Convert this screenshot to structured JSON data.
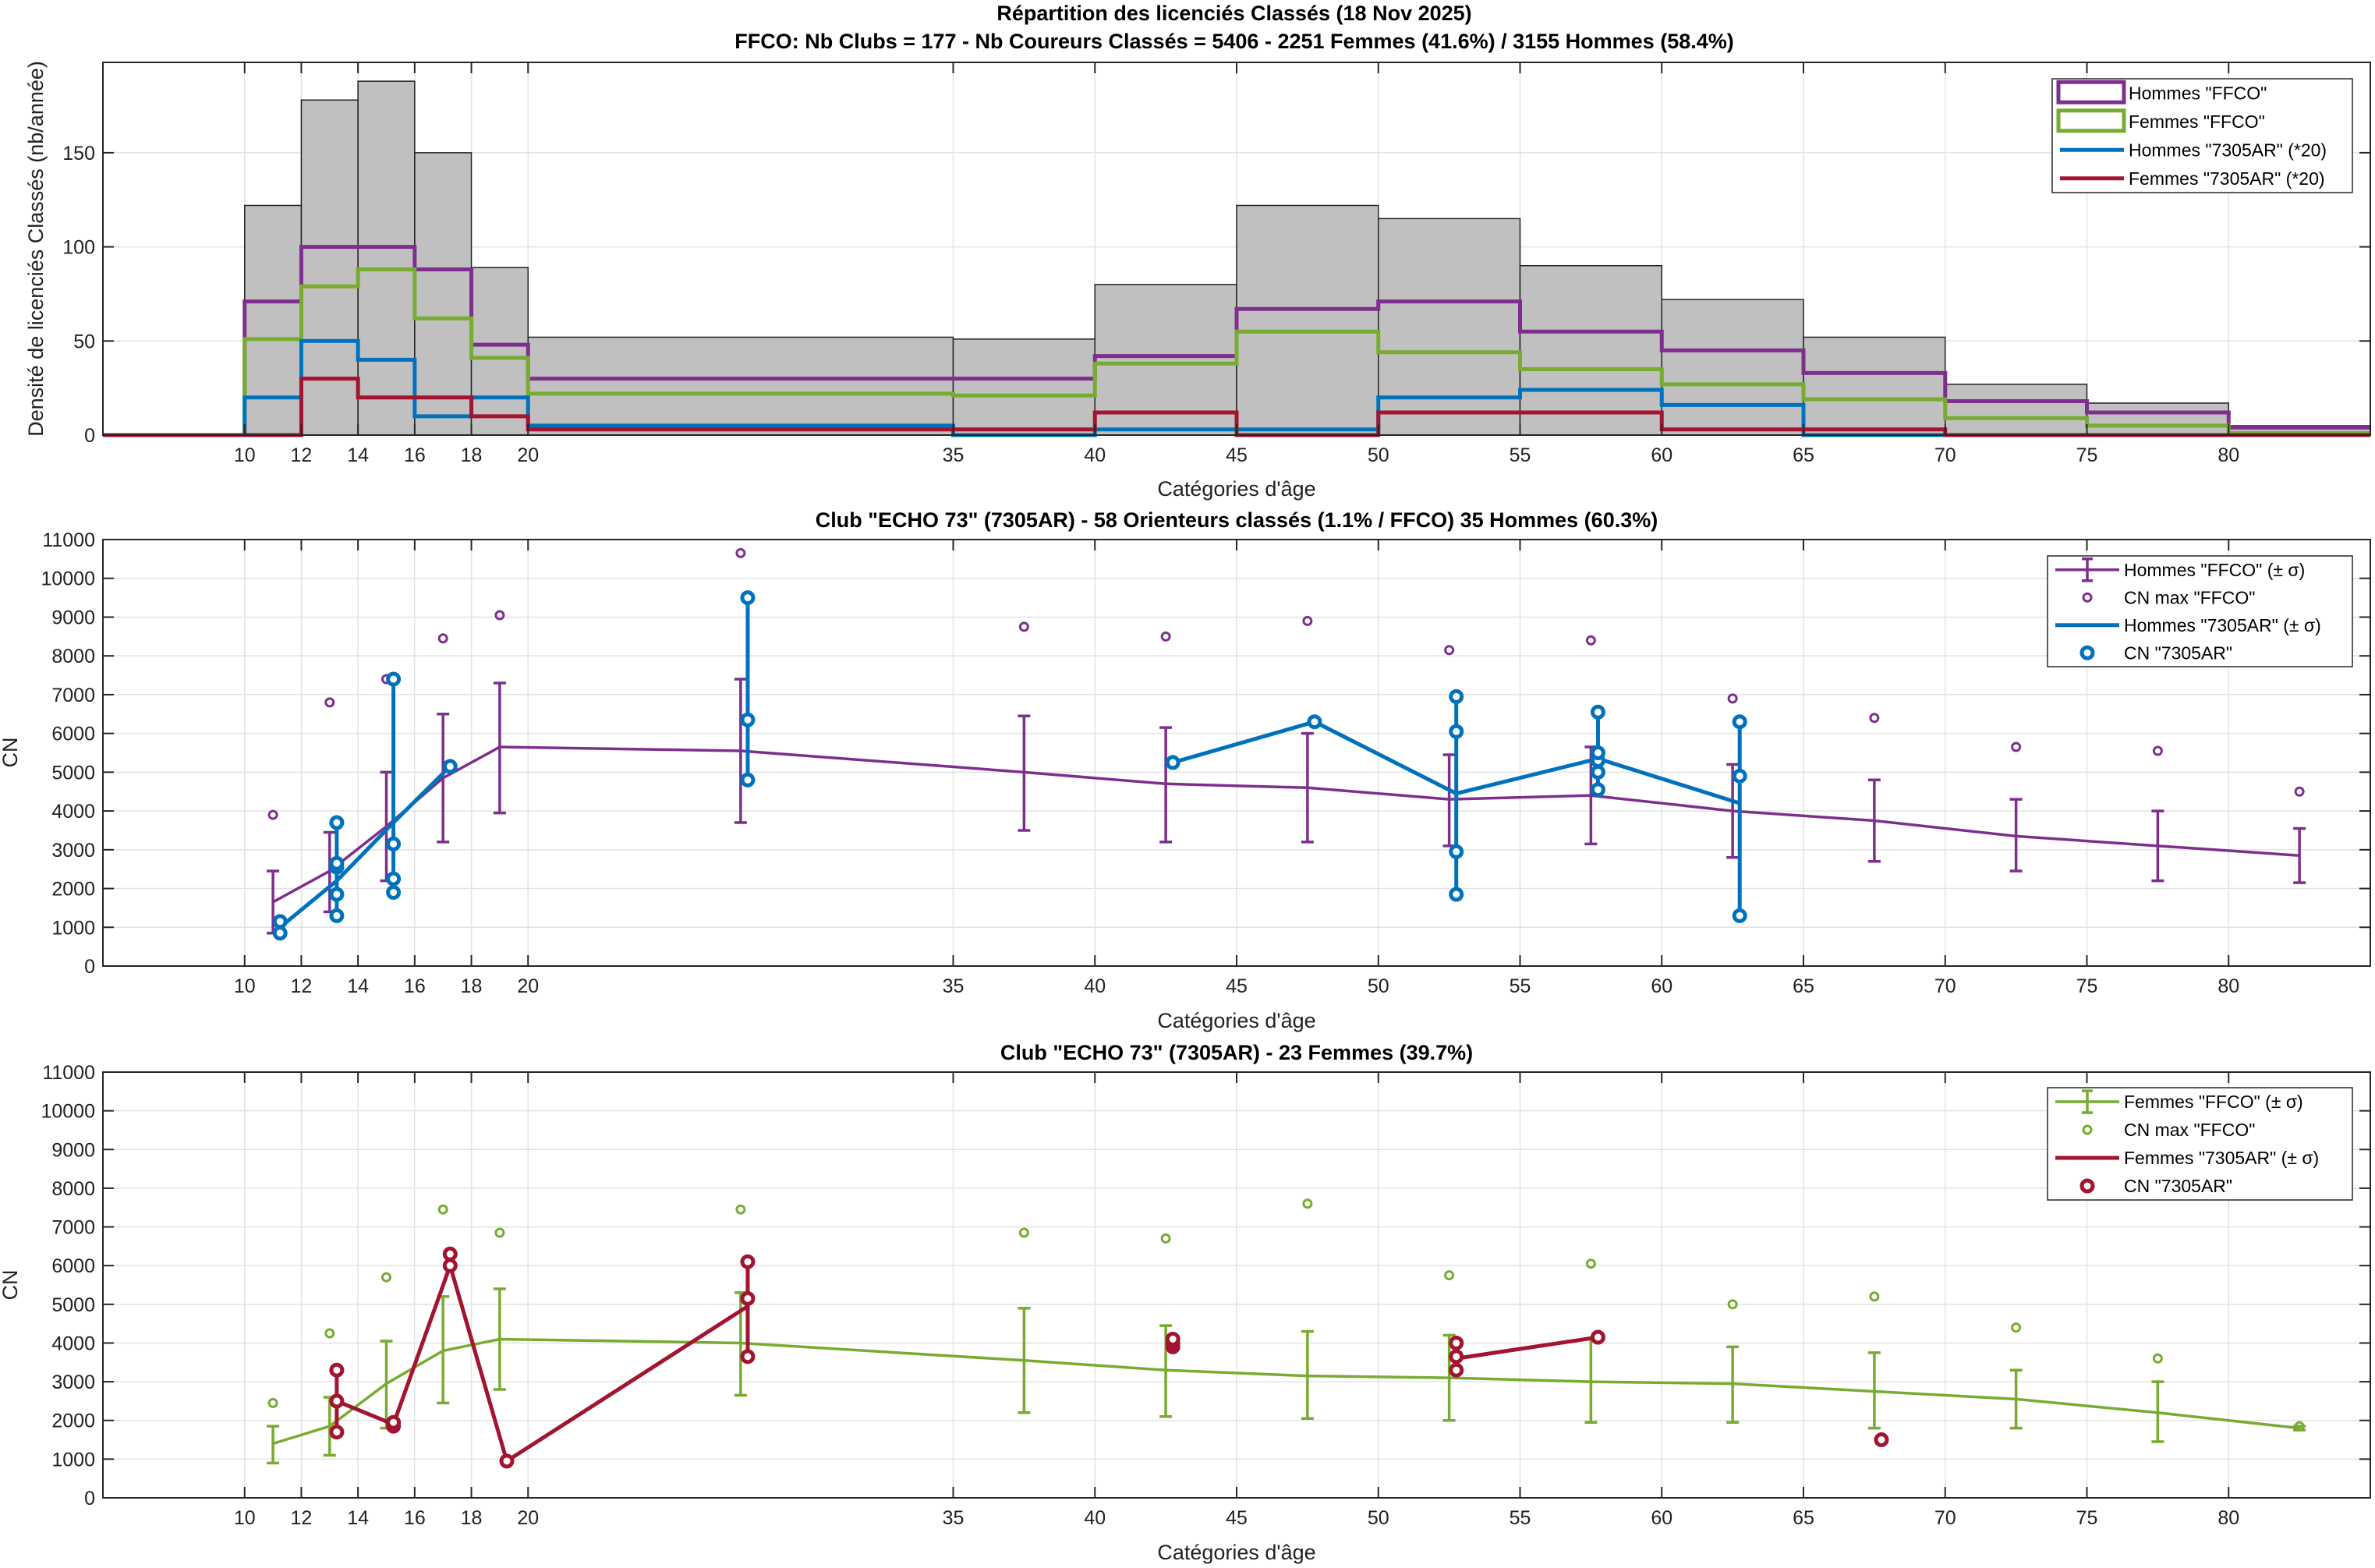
{
  "chart_data": [
    {
      "type": "bar",
      "title": "Répartition des licenciés Classés (18 Nov 2025)",
      "subtitle": "FFCO: Nb Clubs = 177   -   Nb Coureurs Classés = 5406   -   2251 Femmes (41.6%) / 3155 Hommes (58.4%)",
      "xlabel": "Catégories d'âge",
      "ylabel": "Densité de licenciés Classés (nb/année)",
      "xlim": [
        5,
        85
      ],
      "ylim": [
        0,
        198
      ],
      "xticks": [
        10,
        12,
        14,
        16,
        18,
        20,
        35,
        40,
        45,
        50,
        55,
        60,
        65,
        70,
        75,
        80
      ],
      "yticks": [
        0,
        50,
        100,
        150
      ],
      "grid": true,
      "legend_position": "top-right",
      "bin_edges": [
        5,
        10,
        12,
        14,
        16,
        18,
        20,
        35,
        40,
        45,
        50,
        55,
        60,
        65,
        70,
        75,
        80,
        85
      ],
      "total": {
        "color": "#C0C0C0",
        "values": [
          0,
          122,
          178,
          188,
          150,
          89,
          52,
          51,
          80,
          122,
          115,
          90,
          72,
          52,
          27,
          17,
          5
        ]
      },
      "series": [
        {
          "name": "Hommes \"FFCO\"",
          "color": "#7E2F8E",
          "legend_style": "box",
          "values": [
            0,
            71,
            100,
            100,
            88,
            48,
            30,
            30,
            42,
            67,
            71,
            55,
            45,
            33,
            18,
            12,
            4
          ]
        },
        {
          "name": "Femmes \"FFCO\"",
          "color": "#77AC30",
          "legend_style": "box",
          "values": [
            0,
            51,
            79,
            88,
            62,
            41,
            22,
            21,
            38,
            55,
            44,
            35,
            27,
            19,
            9,
            5,
            1
          ]
        },
        {
          "name": "Hommes \"7305AR\" (*20)",
          "color": "#0072BD",
          "legend_style": "line",
          "values": [
            0,
            20,
            50,
            40,
            10,
            20,
            5,
            0,
            3,
            3,
            20,
            24,
            16,
            0,
            0,
            0,
            0
          ]
        },
        {
          "name": "Femmes \"7305AR\" (*20)",
          "color": "#A2142F",
          "legend_style": "line",
          "values": [
            0,
            0,
            30,
            20,
            20,
            10,
            3,
            3,
            12,
            0,
            12,
            12,
            3,
            3,
            0,
            0,
            0
          ]
        }
      ]
    },
    {
      "type": "line",
      "title": "Club \"ECHO 73\" (7305AR)  -  58 Orienteurs classés (1.1% / FFCO)  35 Hommes (60.3%)",
      "xlabel": "Catégories d'âge",
      "ylabel": "CN",
      "xlim": [
        5,
        85
      ],
      "ylim": [
        0,
        11000
      ],
      "xticks": [
        10,
        12,
        14,
        16,
        18,
        20,
        35,
        40,
        45,
        50,
        55,
        60,
        65,
        70,
        75,
        80
      ],
      "yticks": [
        0,
        1000,
        2000,
        3000,
        4000,
        5000,
        6000,
        7000,
        8000,
        9000,
        10000,
        11000
      ],
      "grid": true,
      "legend_position": "top-right",
      "x": [
        11,
        13,
        15,
        17,
        19,
        27.5,
        37.5,
        42.5,
        47.5,
        52.5,
        57.5,
        62.5,
        67.5,
        72.5,
        77.5,
        82.5
      ],
      "series": [
        {
          "name": "Hommes \"FFCO\" (± σ)",
          "kind": "errorline",
          "color": "#7E2F8E",
          "mean": [
            1650,
            2450,
            3600,
            4850,
            5650,
            5550,
            5000,
            4700,
            4600,
            4300,
            4400,
            4000,
            3750,
            3350,
            3100,
            2850
          ],
          "lower": [
            850,
            1400,
            2200,
            3200,
            3950,
            3700,
            3500,
            3200,
            3200,
            3100,
            3150,
            2800,
            2700,
            2450,
            2200,
            2150
          ],
          "upper": [
            2450,
            3450,
            5000,
            6500,
            7300,
            7400,
            6450,
            6150,
            6000,
            5450,
            5650,
            5200,
            4800,
            4300,
            4000,
            3550
          ]
        },
        {
          "name": "CN max \"FFCO\"",
          "kind": "markers",
          "color": "#7E2F8E",
          "values": [
            3900,
            6800,
            7400,
            8450,
            9050,
            10650,
            8750,
            8500,
            8900,
            8150,
            8400,
            6900,
            6400,
            5650,
            5550,
            4500
          ]
        },
        {
          "name": "Hommes \"7305AR\" (± σ)",
          "kind": "errorline",
          "color": "#0072BD",
          "mean": [
            1000,
            2200,
            3700,
            5150,
            null,
            6900,
            null,
            5250,
            6300,
            4450,
            5350,
            4200,
            null,
            null,
            null,
            null
          ],
          "lower": [
            850,
            1300,
            1900,
            null,
            null,
            4800,
            null,
            null,
            null,
            1850,
            4550,
            1300,
            null,
            null,
            null,
            null
          ],
          "upper": [
            1150,
            3700,
            7400,
            null,
            null,
            9500,
            null,
            null,
            null,
            6950,
            6550,
            6300,
            null,
            null,
            null,
            null
          ]
        },
        {
          "name": "CN \"7305AR\"",
          "kind": "points",
          "color": "#0072BD",
          "points": [
            [
              11,
              850
            ],
            [
              11,
              1150
            ],
            [
              13,
              1300
            ],
            [
              13,
              1850
            ],
            [
              13,
              2550
            ],
            [
              13,
              2650
            ],
            [
              13,
              3700
            ],
            [
              15,
              1900
            ],
            [
              15,
              2250
            ],
            [
              15,
              3150
            ],
            [
              15,
              7400
            ],
            [
              17,
              5150
            ],
            [
              27.5,
              4800
            ],
            [
              27.5,
              6350
            ],
            [
              27.5,
              9500
            ],
            [
              42.5,
              5250
            ],
            [
              47.5,
              6300
            ],
            [
              52.5,
              1850
            ],
            [
              52.5,
              2950
            ],
            [
              52.5,
              6050
            ],
            [
              52.5,
              6950
            ],
            [
              57.5,
              4550
            ],
            [
              57.5,
              5000
            ],
            [
              57.5,
              5300
            ],
            [
              57.5,
              5500
            ],
            [
              57.5,
              6550
            ],
            [
              62.5,
              1300
            ],
            [
              62.5,
              4900
            ],
            [
              62.5,
              6300
            ]
          ]
        }
      ]
    },
    {
      "type": "line",
      "title": "Club \"ECHO 73\" (7305AR)  -  23 Femmes (39.7%)",
      "xlabel": "Catégories d'âge",
      "ylabel": "CN",
      "xlim": [
        5,
        85
      ],
      "ylim": [
        0,
        11000
      ],
      "xticks": [
        10,
        12,
        14,
        16,
        18,
        20,
        35,
        40,
        45,
        50,
        55,
        60,
        65,
        70,
        75,
        80
      ],
      "yticks": [
        0,
        1000,
        2000,
        3000,
        4000,
        5000,
        6000,
        7000,
        8000,
        9000,
        10000,
        11000
      ],
      "grid": true,
      "legend_position": "top-right",
      "x": [
        11,
        13,
        15,
        17,
        19,
        27.5,
        37.5,
        42.5,
        47.5,
        52.5,
        57.5,
        62.5,
        67.5,
        72.5,
        77.5,
        82.5
      ],
      "series": [
        {
          "name": "Femmes \"FFCO\" (± σ)",
          "kind": "errorline",
          "color": "#77AC30",
          "mean": [
            1400,
            1850,
            2950,
            3800,
            4100,
            4000,
            3550,
            3300,
            3150,
            3100,
            3000,
            2950,
            2750,
            2550,
            2200,
            1800
          ],
          "lower": [
            900,
            1100,
            1800,
            2450,
            2800,
            2650,
            2200,
            2100,
            2050,
            2000,
            1950,
            1950,
            1800,
            1800,
            1450,
            1750
          ],
          "upper": [
            1850,
            2600,
            4050,
            5200,
            5400,
            5300,
            4900,
            4450,
            4300,
            4200,
            4100,
            3900,
            3750,
            3300,
            3000,
            1850
          ]
        },
        {
          "name": "CN max \"FFCO\"",
          "kind": "markers",
          "color": "#77AC30",
          "values": [
            2450,
            4250,
            5700,
            7450,
            6850,
            7450,
            6850,
            6700,
            7600,
            5750,
            6050,
            5000,
            5200,
            4400,
            3600,
            1850
          ]
        },
        {
          "name": "Femmes \"7305AR\" (± σ)",
          "kind": "errorline",
          "color": "#A2142F",
          "mean": [
            null,
            2500,
            1900,
            6000,
            950,
            4950,
            null,
            4000,
            null,
            3600,
            4150,
            null,
            1500,
            null,
            null,
            null
          ],
          "lower": [
            null,
            1700,
            1850,
            6000,
            null,
            3650,
            null,
            3900,
            null,
            3300,
            null,
            null,
            null,
            null,
            null,
            null
          ],
          "upper": [
            null,
            3300,
            1950,
            6300,
            null,
            6100,
            null,
            4100,
            null,
            4000,
            null,
            null,
            null,
            null,
            null,
            null
          ]
        },
        {
          "name": "CN \"7305AR\"",
          "kind": "points",
          "color": "#A2142F",
          "points": [
            [
              13,
              1700
            ],
            [
              13,
              2500
            ],
            [
              13,
              3300
            ],
            [
              15,
              1850
            ],
            [
              15,
              1950
            ],
            [
              17,
              6000
            ],
            [
              17,
              6300
            ],
            [
              19,
              950
            ],
            [
              27.5,
              3650
            ],
            [
              27.5,
              5150
            ],
            [
              27.5,
              6100
            ],
            [
              42.5,
              3900
            ],
            [
              42.5,
              4000
            ],
            [
              42.5,
              4100
            ],
            [
              52.5,
              3300
            ],
            [
              52.5,
              3650
            ],
            [
              52.5,
              4000
            ],
            [
              57.5,
              4150
            ],
            [
              67.5,
              1500
            ]
          ]
        }
      ]
    }
  ]
}
